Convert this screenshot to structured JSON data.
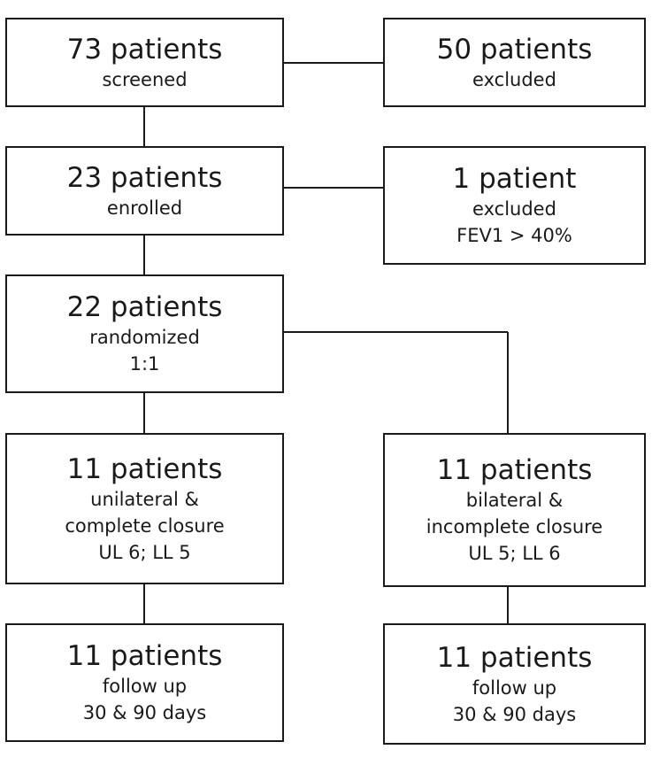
{
  "boxes": {
    "screened": {
      "title": "73 patients",
      "lines": [
        "screened"
      ]
    },
    "excluded_1": {
      "title": "50 patients",
      "lines": [
        "excluded"
      ]
    },
    "enrolled": {
      "title": "23 patients",
      "lines": [
        "enrolled"
      ]
    },
    "excluded_2": {
      "title": "1 patient",
      "lines": [
        "excluded",
        "FEV1 > 40%"
      ]
    },
    "randomized": {
      "title": "22 patients",
      "lines": [
        "randomized",
        "1:1"
      ]
    },
    "unilateral": {
      "title": "11 patients",
      "lines": [
        "unilateral &",
        "complete closure",
        "UL 6; LL 5"
      ]
    },
    "bilateral": {
      "title": "11 patients",
      "lines": [
        "bilateral &",
        "incomplete closure",
        "UL 5; LL 6"
      ]
    },
    "followup_1": {
      "title": "11 patients",
      "lines": [
        "follow up",
        "30 & 90 days"
      ]
    },
    "followup_2": {
      "title": "11 patients",
      "lines": [
        "follow up",
        "30 & 90 days"
      ]
    }
  },
  "connections": [
    [
      "screened",
      "excluded_1"
    ],
    [
      "screened",
      "enrolled"
    ],
    [
      "enrolled",
      "excluded_2"
    ],
    [
      "enrolled",
      "randomized"
    ],
    [
      "randomized",
      "unilateral"
    ],
    [
      "randomized",
      "bilateral"
    ],
    [
      "unilateral",
      "followup_1"
    ],
    [
      "bilateral",
      "followup_2"
    ]
  ]
}
